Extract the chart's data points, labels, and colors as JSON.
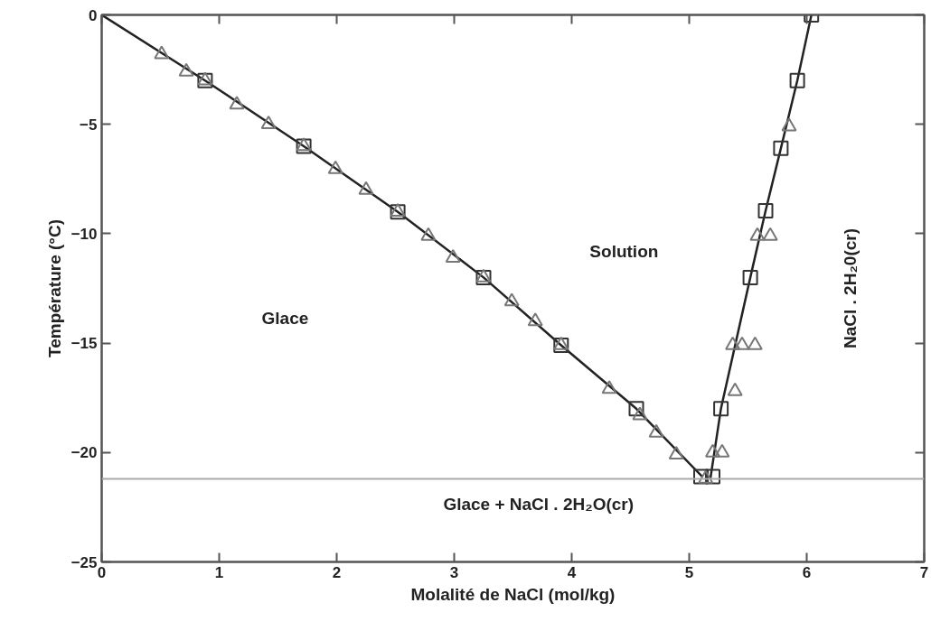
{
  "chart_data": {
    "type": "scatter",
    "xlabel": "Molalité de NaCl (mol/kg)",
    "ylabel": "Température (°C)",
    "xlim": [
      0,
      7
    ],
    "ylim": [
      -25,
      0
    ],
    "xticks": [
      0,
      1,
      2,
      3,
      4,
      5,
      6,
      7
    ],
    "yticks": [
      0,
      -5,
      -10,
      -15,
      -20,
      -25
    ],
    "grid": false,
    "series": [
      {
        "type": "line",
        "color": "#222222",
        "marker": "none",
        "line_style": "solid",
        "x": [
          0,
          0.88,
          1.72,
          2.52,
          3.25,
          3.91,
          4.55,
          5.11
        ],
        "values": [
          0,
          -3.0,
          -6.0,
          -9.0,
          -12.0,
          -15.1,
          -18.0,
          -21.1
        ]
      },
      {
        "type": "line",
        "color": "#222222",
        "marker": "none",
        "line_style": "solid",
        "x": [
          5.18,
          5.27,
          5.52,
          5.65,
          5.78,
          5.92,
          6.04
        ],
        "values": [
          -21.2,
          -18.0,
          -12.0,
          -8.95,
          -6.1,
          -3.0,
          0
        ]
      },
      {
        "color": "#333333",
        "marker": "square",
        "x": [
          0.88,
          1.72,
          2.52,
          3.25,
          3.91,
          4.55,
          5.1,
          5.2,
          5.27,
          5.52,
          5.65,
          5.78,
          5.92,
          6.04
        ],
        "values": [
          -3.0,
          -6.0,
          -9.0,
          -12.0,
          -15.1,
          -18.0,
          -21.1,
          -21.1,
          -18.0,
          -12.0,
          -8.95,
          -6.1,
          -3.0,
          0
        ]
      },
      {
        "color": "#777777",
        "marker": "triangle",
        "x": [
          0.51,
          0.72,
          0.88,
          1.15,
          1.42,
          1.72,
          1.99,
          2.25,
          2.52,
          2.78,
          2.99,
          3.25,
          3.49,
          3.69,
          3.91,
          4.32,
          4.58,
          4.72,
          4.89,
          5.14,
          5.2,
          5.28,
          5.39,
          5.37,
          5.45,
          5.56,
          5.58,
          5.69,
          5.85
        ],
        "values": [
          -1.8,
          -2.6,
          -3.0,
          -4.1,
          -5.0,
          -6.0,
          -7.05,
          -8.0,
          -9.0,
          -10.1,
          -11.1,
          -12.0,
          -13.1,
          -14.0,
          -15.1,
          -17.1,
          -18.3,
          -19.1,
          -20.1,
          -21.2,
          -20.0,
          -20.0,
          -17.2,
          -15.1,
          -15.1,
          -15.1,
          -10.1,
          -10.1,
          -5.1
        ]
      }
    ],
    "ref_lines": [
      {
        "axis": "y",
        "value": -21.2,
        "color": "#aaaaaa"
      }
    ],
    "annotations": [
      "Glace",
      "Solution",
      "NaCl . 2H₂0(cr)",
      "Glace + NaCl . 2H₂O(cr)"
    ]
  }
}
